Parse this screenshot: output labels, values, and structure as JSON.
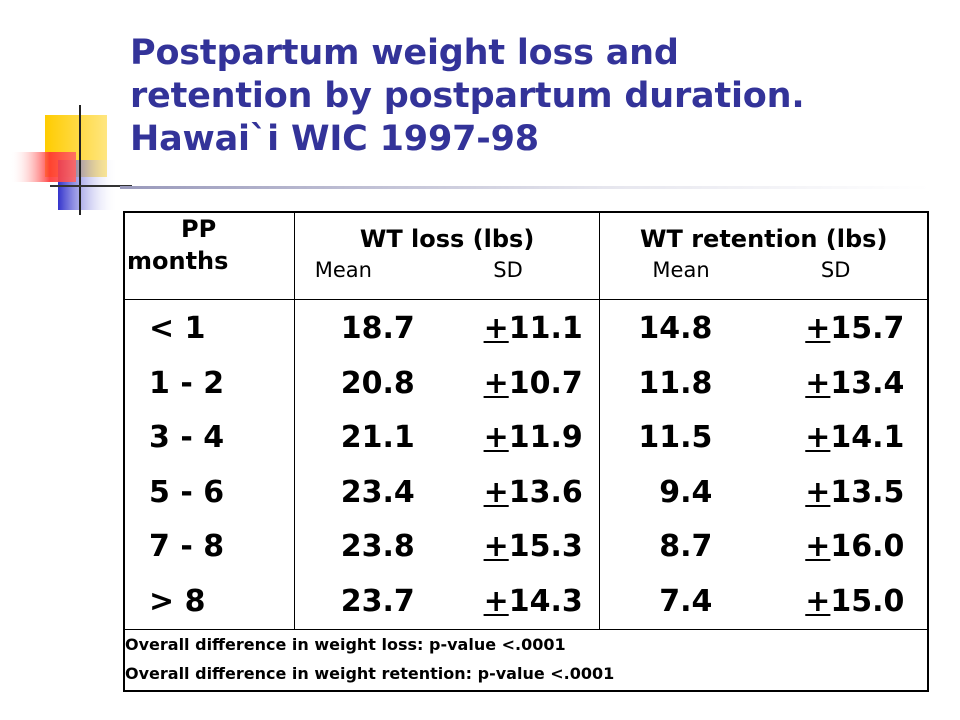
{
  "slide": {
    "title_lines": [
      "Postpartum weight loss and",
      "retention by postpartum duration.",
      "Hawai`i WIC 1997-98"
    ]
  },
  "table": {
    "headers": {
      "pp": [
        "PP",
        "months"
      ],
      "loss": {
        "label": "WT loss (lbs)",
        "mean": "Mean",
        "sd": "SD"
      },
      "retention": {
        "label": "WT retention (lbs)",
        "mean": "Mean",
        "sd": "SD"
      }
    },
    "pm_symbol": "+",
    "rows": [
      {
        "pp": "< 1",
        "loss_mean": "18.7",
        "loss_sd": "11.1",
        "ret_mean": "14.8",
        "ret_sd": "15.7"
      },
      {
        "pp": "1 - 2",
        "loss_mean": "20.8",
        "loss_sd": "10.7",
        "ret_mean": "11.8",
        "ret_sd": "13.4"
      },
      {
        "pp": "3 - 4",
        "loss_mean": "21.1",
        "loss_sd": "11.9",
        "ret_mean": "11.5",
        "ret_sd": "14.1"
      },
      {
        "pp": "5 - 6",
        "loss_mean": "23.4",
        "loss_sd": "13.6",
        "ret_mean": "9.4",
        "ret_sd": "13.5"
      },
      {
        "pp": "7 - 8",
        "loss_mean": "23.8",
        "loss_sd": "15.3",
        "ret_mean": "8.7",
        "ret_sd": "16.0"
      },
      {
        "pp": "> 8",
        "loss_mean": "23.7",
        "loss_sd": "14.3",
        "ret_mean": "7.4",
        "ret_sd": "15.0"
      }
    ],
    "footnotes": [
      "Overall difference in weight loss: p-value <.0001",
      "Overall difference in weight retention: p-value <.0001"
    ]
  },
  "colors": {
    "title": "#333399",
    "deco_yellow": "#ffcc00",
    "deco_blue": "#3333cc",
    "deco_red": "#ff4444"
  }
}
